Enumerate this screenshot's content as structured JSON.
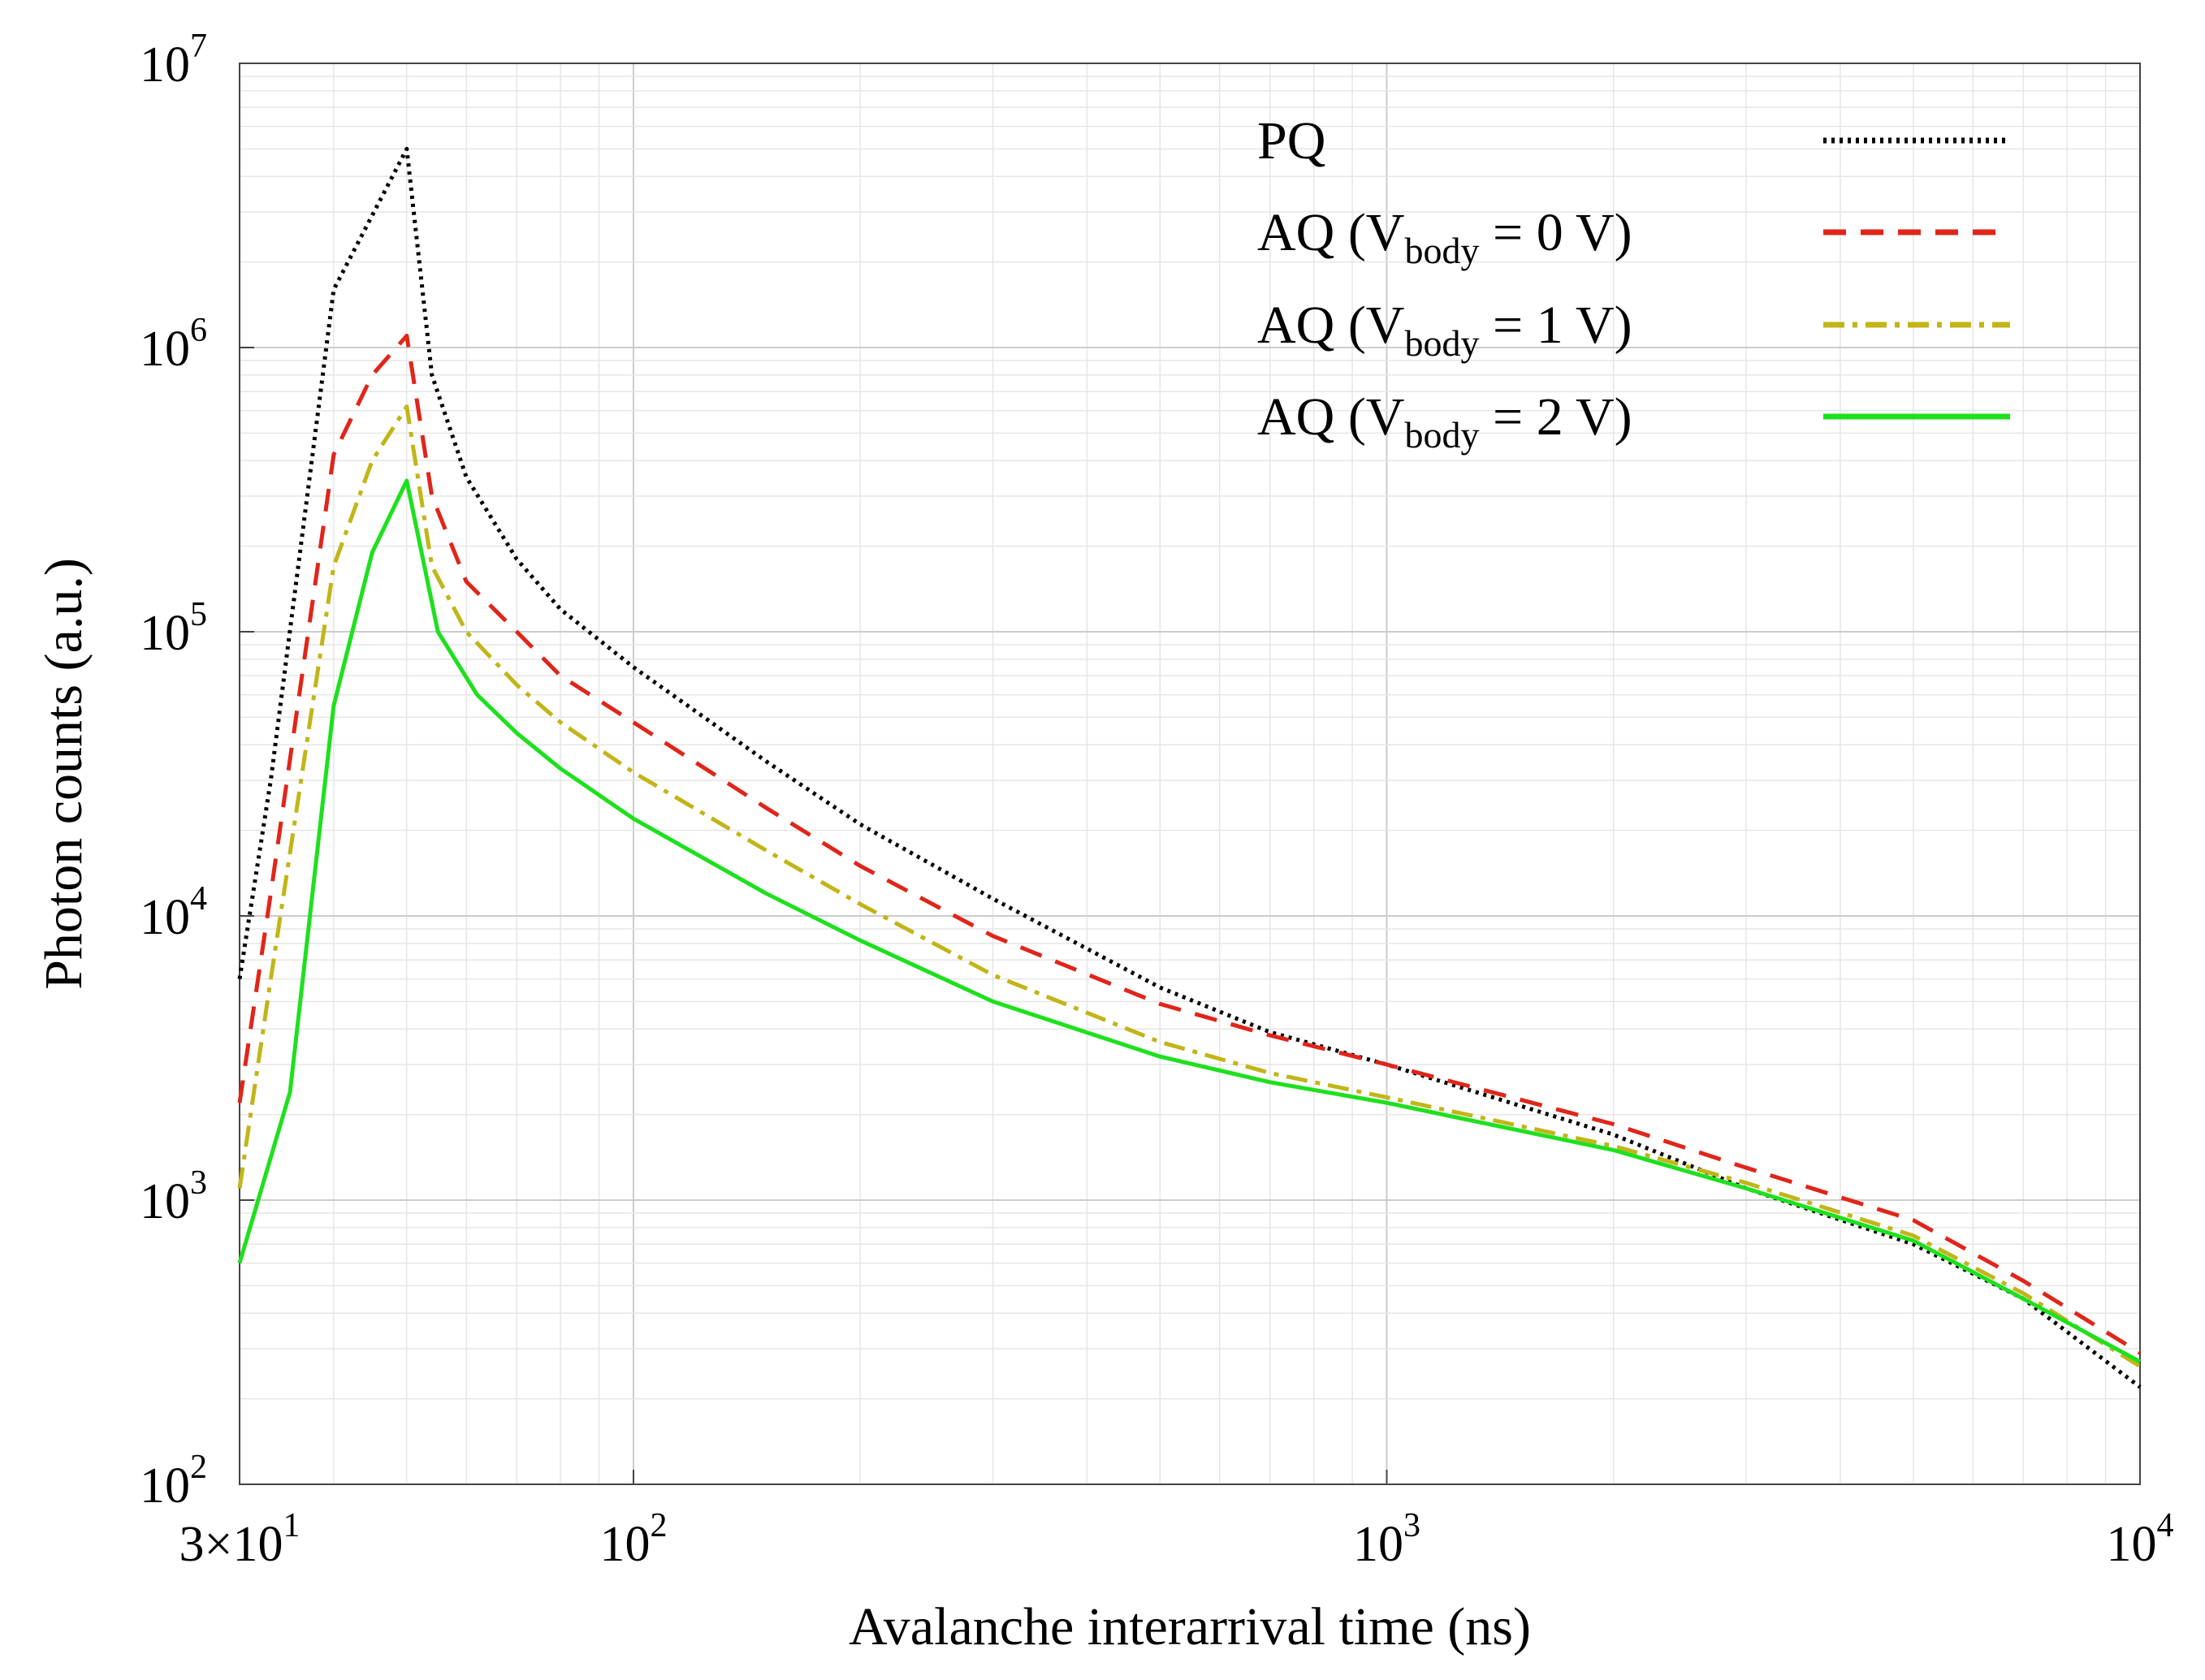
{
  "chart_data": {
    "type": "line",
    "xscale": "log",
    "yscale": "log",
    "xlim": [
      30,
      10000
    ],
    "ylim": [
      100,
      10000000
    ],
    "xlabel": "Avalanche interarrival time (ns)",
    "ylabel": "Photon counts (a.u.)",
    "x_ticks": [
      {
        "value": 30,
        "base": "3×10",
        "exp": "1"
      },
      {
        "value": 100,
        "base": "10",
        "exp": "2"
      },
      {
        "value": 1000,
        "base": "10",
        "exp": "3"
      },
      {
        "value": 10000,
        "base": "10",
        "exp": "4"
      }
    ],
    "y_ticks": [
      {
        "value": 100,
        "base": "10",
        "exp": "2"
      },
      {
        "value": 1000,
        "base": "10",
        "exp": "3"
      },
      {
        "value": 10000,
        "base": "10",
        "exp": "4"
      },
      {
        "value": 100000,
        "base": "10",
        "exp": "5"
      },
      {
        "value": 1000000,
        "base": "10",
        "exp": "6"
      },
      {
        "value": 10000000,
        "base": "10",
        "exp": "7"
      }
    ],
    "grid": true,
    "legend_position": "top-right",
    "series": [
      {
        "name": "PQ",
        "label_main": "PQ",
        "label_sub": "",
        "label_tail": "",
        "color": "#000000",
        "dash": "4 6",
        "width": 5,
        "x": [
          30,
          33,
          40,
          50,
          54,
          60,
          70,
          80,
          100,
          150,
          200,
          300,
          500,
          700,
          1000,
          2000,
          3000,
          5000,
          7000,
          10000
        ],
        "y": [
          6000,
          30000,
          1600000,
          5000000,
          800000,
          350000,
          180000,
          120000,
          75000,
          35000,
          21000,
          11500,
          5600,
          3900,
          3000,
          1700,
          1100,
          700,
          450,
          220
        ]
      },
      {
        "name": "AQ (Vbody = 0 V)",
        "label_main": "AQ (V",
        "label_sub": "body",
        "label_tail": " = 0 V)",
        "color": "#e0251a",
        "dash": "28 18",
        "width": 5,
        "x": [
          30,
          33,
          40,
          45,
          50,
          54,
          60,
          70,
          80,
          100,
          150,
          200,
          300,
          500,
          700,
          1000,
          2000,
          3000,
          5000,
          7000,
          10000
        ],
        "y": [
          2200,
          12000,
          420000,
          800000,
          1100000,
          300000,
          150000,
          100000,
          70000,
          48000,
          24000,
          15000,
          8500,
          4900,
          3800,
          3000,
          1850,
          1300,
          850,
          520,
          290
        ]
      },
      {
        "name": "AQ (Vbody = 1 V)",
        "label_main": "AQ (V",
        "label_sub": "body",
        "label_tail": " = 1 V)",
        "color": "#c2b518",
        "dash": "26 10 6 10",
        "width": 5,
        "x": [
          30,
          33,
          40,
          45,
          50,
          54,
          60,
          70,
          80,
          100,
          150,
          200,
          300,
          500,
          700,
          1000,
          2000,
          3000,
          5000,
          7000,
          10000
        ],
        "y": [
          1100,
          6000,
          170000,
          400000,
          620000,
          170000,
          100000,
          65000,
          48000,
          32000,
          17000,
          11000,
          6200,
          3600,
          2800,
          2300,
          1550,
          1150,
          750,
          470,
          260
        ]
      },
      {
        "name": "AQ (Vbody = 2 V)",
        "label_main": "AQ (V",
        "label_sub": "body",
        "label_tail": " = 2 V)",
        "color": "#1ee01e",
        "dash": "",
        "width": 5,
        "x": [
          30,
          35,
          40,
          45,
          50,
          55,
          62,
          70,
          80,
          100,
          150,
          200,
          300,
          500,
          700,
          1000,
          2000,
          3000,
          5000,
          7000,
          10000
        ],
        "y": [
          600,
          2400,
          55000,
          190000,
          340000,
          100000,
          60000,
          44000,
          33000,
          22000,
          12000,
          8200,
          5000,
          3200,
          2600,
          2200,
          1500,
          1100,
          720,
          450,
          270
        ]
      }
    ]
  }
}
